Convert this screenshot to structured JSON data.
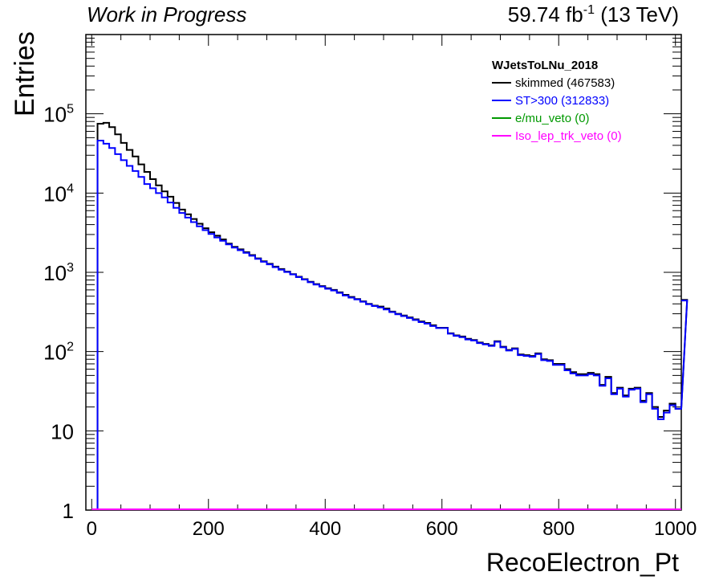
{
  "header": {
    "left_label": "Work in Progress",
    "lumi_value": "59.74 fb",
    "lumi_exponent": "-1",
    "energy": " (13 TeV)"
  },
  "chart_data": {
    "type": "line",
    "style": "step-histogram",
    "xlabel": "RecoElectron_Pt",
    "ylabel": "Entries",
    "xlim": [
      -10,
      1010
    ],
    "ylim": [
      1,
      1000000
    ],
    "log_y": true,
    "grid": false,
    "legend_placement": "top-right",
    "legend_title": "WJetsToLNu_2018",
    "bin_width": 10,
    "x_ticks": [
      "0",
      "200",
      "400",
      "600",
      "800",
      "1000"
    ],
    "y_ticks": [
      {
        "value": 1,
        "base": "1",
        "exp": ""
      },
      {
        "value": 10,
        "base": "10",
        "exp": ""
      },
      {
        "value": 100,
        "base": "10",
        "exp": "2"
      },
      {
        "value": 1000,
        "base": "10",
        "exp": "3"
      },
      {
        "value": 10000,
        "base": "10",
        "exp": "4"
      },
      {
        "value": 100000,
        "base": "10",
        "exp": "5"
      }
    ],
    "series": [
      {
        "name": "skimmed (467583)",
        "color": "#000000",
        "bin_edges_from": 10,
        "values": [
          75000,
          77000,
          68000,
          55000,
          43000,
          35000,
          29000,
          23000,
          18500,
          15000,
          12500,
          10500,
          9000,
          7500,
          6200,
          5400,
          4700,
          4100,
          3600,
          3200,
          2900,
          2600,
          2300,
          2100,
          1950,
          1800,
          1650,
          1500,
          1380,
          1280,
          1180,
          1100,
          1020,
          950,
          880,
          820,
          760,
          710,
          670,
          630,
          600,
          560,
          520,
          490,
          460,
          430,
          400,
          380,
          370,
          350,
          320,
          300,
          285,
          270,
          255,
          240,
          230,
          215,
          200,
          200,
          170,
          160,
          155,
          145,
          140,
          130,
          125,
          120,
          135,
          115,
          105,
          110,
          92,
          90,
          88,
          95,
          80,
          78,
          70,
          70,
          60,
          55,
          52,
          52,
          54,
          52,
          38,
          48,
          30,
          35,
          28,
          34,
          35,
          24,
          30,
          20,
          15,
          18,
          22,
          19,
          19,
          450
        ],
        "series_values_start": 0
      },
      {
        "name": "ST>300 (312833)",
        "color": "#0000ff",
        "bin_edges_from": 10,
        "values": [
          46000,
          42000,
          37000,
          31000,
          26000,
          22000,
          19000,
          16000,
          13000,
          11500,
          10000,
          8800,
          7600,
          6500,
          5600,
          4900,
          4300,
          3800,
          3400,
          3050,
          2750,
          2500,
          2250,
          2050,
          1900,
          1760,
          1620,
          1480,
          1360,
          1260,
          1160,
          1080,
          1010,
          940,
          870,
          810,
          750,
          700,
          660,
          620,
          590,
          550,
          510,
          480,
          455,
          425,
          395,
          375,
          360,
          340,
          315,
          295,
          280,
          265,
          250,
          235,
          225,
          210,
          198,
          198,
          168,
          158,
          152,
          142,
          138,
          128,
          123,
          118,
          133,
          113,
          103,
          108,
          90,
          88,
          86,
          93,
          78,
          76,
          68,
          68,
          58,
          53,
          50,
          50,
          52,
          50,
          37,
          46,
          29,
          34,
          27,
          33,
          34,
          23,
          29,
          19,
          14,
          17,
          21,
          19,
          19,
          440
        ]
      },
      {
        "name": "e/mu_veto (0)",
        "color": "#009900",
        "values": []
      },
      {
        "name": "Iso_lep_trk_veto (0)",
        "color": "#ff00ff",
        "values": []
      }
    ]
  }
}
